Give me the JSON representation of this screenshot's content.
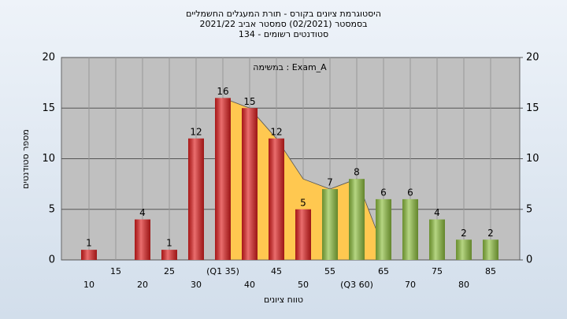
{
  "chart_data": {
    "type": "bar",
    "title": [
      "היסטוגרמת ציונים בקורס - תורת המעגלים החשמליים",
      "בסמסטר  (02/2021)  סמסטר אביב 2021/22",
      "סטודנטים רשומים - 134"
    ],
    "annotation": "במשימה : Exam_A",
    "xlabel": "טווח ציונים",
    "ylabel": "מספר סטודנטים",
    "categories": [
      "10",
      "15",
      "20",
      "25",
      "30",
      "(Q1 35)",
      "40",
      "45",
      "50",
      "55",
      "(Q3 60)",
      "65",
      "70",
      "75",
      "80",
      "85"
    ],
    "values": [
      1,
      0,
      4,
      1,
      12,
      16,
      15,
      12,
      5,
      7,
      8,
      6,
      6,
      4,
      2,
      2
    ],
    "colors": [
      "#e02020",
      "#e02020",
      "#e02020",
      "#e02020",
      "#e02020",
      "#e02020",
      "#e02020",
      "#e02020",
      "#e02020",
      "#8fc040",
      "#8fc040",
      "#8fc040",
      "#8fc040",
      "#8fc040",
      "#8fc040",
      "#8fc040"
    ],
    "area": {
      "color": "#ffc850",
      "x": [
        35,
        40,
        45,
        50,
        55,
        60,
        64
      ],
      "values": [
        16,
        15,
        12,
        8,
        7,
        8,
        2.5
      ]
    },
    "ylim": [
      0,
      20
    ],
    "yticks": [
      0,
      5,
      10,
      15,
      20
    ],
    "y2lim": [
      0,
      20
    ],
    "y2ticks": [
      0,
      5,
      10,
      15,
      20
    ],
    "grid": true
  }
}
